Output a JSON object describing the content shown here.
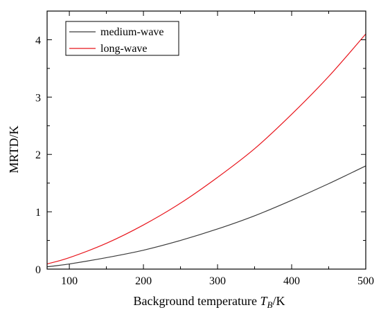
{
  "chart_data": {
    "type": "line",
    "title": "",
    "xlabel_prefix": "Background temperature ",
    "xlabel_var": "T",
    "xlabel_sub": "B",
    "xlabel_suffix": "/K",
    "ylabel": "MRTD/K",
    "xlim": [
      70,
      500
    ],
    "ylim": [
      0,
      4.5
    ],
    "x_ticks": [
      100,
      200,
      300,
      400,
      500
    ],
    "y_ticks": [
      0,
      1,
      2,
      3,
      4
    ],
    "grid": false,
    "legend_position": "top-left",
    "series": [
      {
        "name": "medium-wave",
        "color": "#3a3a3a",
        "x": [
          70,
          100,
          150,
          200,
          250,
          300,
          350,
          400,
          450,
          500
        ],
        "y": [
          0.04,
          0.09,
          0.2,
          0.33,
          0.5,
          0.7,
          0.93,
          1.2,
          1.49,
          1.8
        ]
      },
      {
        "name": "long-wave",
        "color": "#e8141b",
        "x": [
          70,
          100,
          150,
          200,
          250,
          300,
          350,
          400,
          450,
          500
        ],
        "y": [
          0.09,
          0.2,
          0.45,
          0.77,
          1.15,
          1.6,
          2.1,
          2.7,
          3.36,
          4.1
        ]
      }
    ]
  }
}
